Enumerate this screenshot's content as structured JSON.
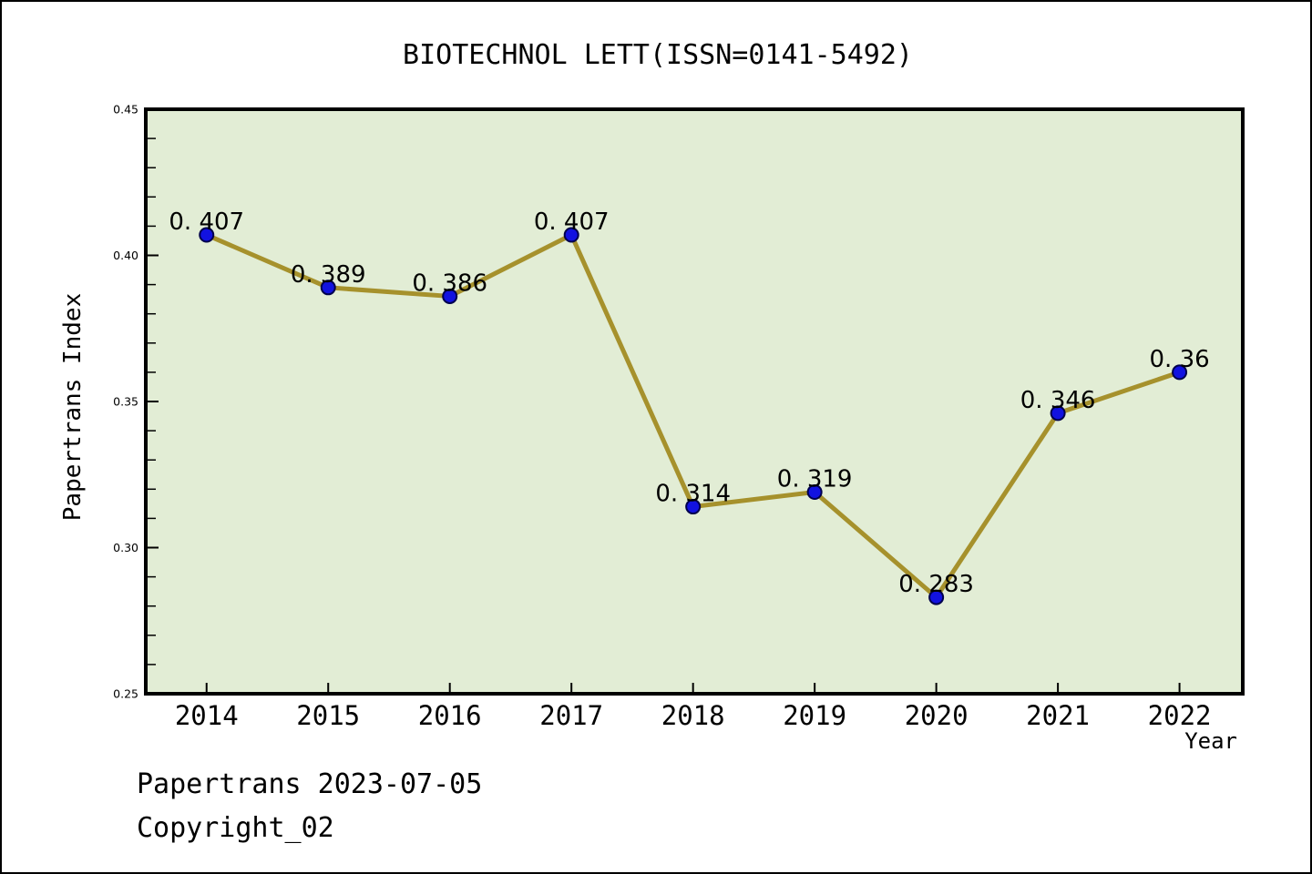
{
  "title": "BIOTECHNOL LETT(ISSN=0141-5492)",
  "axes": {
    "xlabel": "Year",
    "ylabel": "Papertrans Index"
  },
  "footer": {
    "line1": "Papertrans 2023-07-05",
    "line2": "Copyright_02"
  },
  "chart_data": {
    "type": "line",
    "title": "BIOTECHNOL LETT(ISSN=0141-5492)",
    "xlabel": "Year",
    "ylabel": "Papertrans Index",
    "x": [
      2014,
      2015,
      2016,
      2017,
      2018,
      2019,
      2020,
      2021,
      2022
    ],
    "x_tick_labels": [
      "2014",
      "2015",
      "2016",
      "2017",
      "2018",
      "2019",
      "2020",
      "2021",
      "2022"
    ],
    "series": [
      {
        "name": "Papertrans Index",
        "values": [
          0.407,
          0.389,
          0.386,
          0.407,
          0.314,
          0.319,
          0.283,
          0.346,
          0.36
        ],
        "point_labels": [
          "0. 407",
          "0. 389",
          "0. 386",
          "0. 407",
          "0. 314",
          "0. 319",
          "0. 283",
          "0. 346",
          "0. 36"
        ]
      }
    ],
    "xlim": [
      2013.5,
      2022.52
    ],
    "ylim": [
      0.25,
      0.45
    ],
    "yticks": [
      0.25,
      0.3,
      0.35,
      0.4,
      0.45
    ],
    "ytick_labels": [
      "0.25",
      "0.30",
      "0.35",
      "0.40",
      "0.45"
    ],
    "y_minor_tick_step": 0.01,
    "grid": false,
    "legend": false,
    "colors": {
      "plot_background": "#e2edd5",
      "line": "#a6912c",
      "marker_fill": "#1212e0",
      "marker_edge": "#00004d",
      "axis": "#000000",
      "text": "#000000"
    }
  }
}
